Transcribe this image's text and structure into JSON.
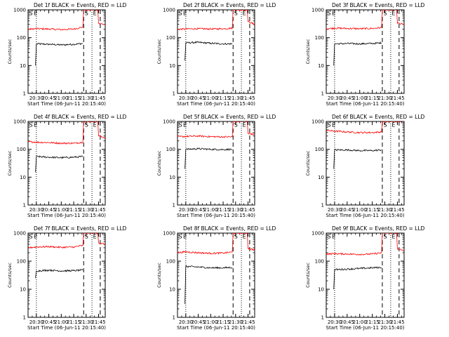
{
  "figure": {
    "y_unit_label": "Counts/sec",
    "x_axis_label": "Start Time (06-Jun-11 20:15:40)",
    "x_tick_labels": [
      "20:30",
      "20:45",
      "21:00",
      "21:15",
      "21:30",
      "21:45"
    ],
    "y_tick_labels": [
      "1",
      "10",
      "100",
      "1000"
    ],
    "marker_labels": [
      "S",
      "E",
      "S",
      "E"
    ],
    "colors": {
      "events": "#000000",
      "lld": "#ff0000",
      "axes": "#000000"
    }
  },
  "chart_data": [
    {
      "type": "line",
      "title": "Det 1f BLACK = Events, RED = LLD",
      "xlabel": "Start Time (06-Jun-11 20:15:40)",
      "ylabel": "Counts/sec",
      "yscale": "log",
      "ylim": [
        1,
        1000
      ],
      "xlim": [
        "20:20",
        "21:53"
      ],
      "x_ticks": [
        "20:30",
        "20:45",
        "21:00",
        "21:15",
        "21:30",
        "21:45"
      ],
      "vlines_dotted": [
        "20:30",
        "21:37"
      ],
      "vlines_dashed": [
        "21:27",
        "21:47"
      ],
      "event_start": "20:29",
      "event_end": "21:27",
      "lld_start": "20:20",
      "lld_end": "21:27",
      "series": [
        {
          "name": "Events",
          "color": "#000000",
          "points": [
            [
              "20:29",
              10
            ],
            [
              "20:30",
              60
            ],
            [
              "20:45",
              58
            ],
            [
              "21:00",
              55
            ],
            [
              "21:15",
              58
            ],
            [
              "21:26",
              62
            ]
          ]
        },
        {
          "name": "LLD",
          "color": "#ff0000",
          "points": [
            [
              "20:20",
              200
            ],
            [
              "20:30",
              210
            ],
            [
              "20:45",
              205
            ],
            [
              "21:00",
              195
            ],
            [
              "21:15",
              205
            ],
            [
              "21:26",
              240
            ],
            [
              "21:27",
              1000
            ],
            [
              "21:44",
              1000
            ],
            [
              "21:45",
              330
            ],
            [
              "21:53",
              290
            ]
          ]
        }
      ]
    },
    {
      "type": "line",
      "title": "Det 2f BLACK = Events, RED = LLD",
      "xlabel": "Start Time (06-Jun-11 20:15:40)",
      "ylabel": "Counts/sec",
      "yscale": "log",
      "ylim": [
        1,
        1000
      ],
      "xlim": [
        "20:20",
        "21:53"
      ],
      "x_ticks": [
        "20:30",
        "20:45",
        "21:00",
        "21:15",
        "21:30",
        "21:45"
      ],
      "vlines_dotted": [
        "20:30",
        "21:37"
      ],
      "vlines_dashed": [
        "21:27",
        "21:47"
      ],
      "event_start": "20:29",
      "event_end": "21:27",
      "lld_start": "20:20",
      "lld_end": "21:27",
      "series": [
        {
          "name": "Events",
          "color": "#000000",
          "points": [
            [
              "20:29",
              15
            ],
            [
              "20:30",
              65
            ],
            [
              "20:45",
              68
            ],
            [
              "21:00",
              63
            ],
            [
              "21:15",
              60
            ],
            [
              "21:26",
              60
            ]
          ]
        },
        {
          "name": "LLD",
          "color": "#ff0000",
          "points": [
            [
              "20:20",
              200
            ],
            [
              "20:30",
              205
            ],
            [
              "20:45",
              210
            ],
            [
              "21:00",
              205
            ],
            [
              "21:15",
              210
            ],
            [
              "21:26",
              220
            ],
            [
              "21:27",
              1000
            ],
            [
              "21:44",
              1000
            ],
            [
              "21:45",
              380
            ],
            [
              "21:53",
              300
            ]
          ]
        }
      ]
    },
    {
      "type": "line",
      "title": "Det 3f BLACK = Events, RED = LLD",
      "xlabel": "Start Time (06-Jun-11 20:15:40)",
      "ylabel": "Counts/sec",
      "yscale": "log",
      "ylim": [
        1,
        1000
      ],
      "xlim": [
        "20:20",
        "21:53"
      ],
      "x_ticks": [
        "20:30",
        "20:45",
        "21:00",
        "21:15",
        "21:30",
        "21:45"
      ],
      "vlines_dotted": [
        "20:30",
        "21:37"
      ],
      "vlines_dashed": [
        "21:27",
        "21:47"
      ],
      "event_start": "20:29",
      "event_end": "21:27",
      "lld_start": "20:20",
      "lld_end": "21:27",
      "series": [
        {
          "name": "Events",
          "color": "#000000",
          "points": [
            [
              "20:29",
              10
            ],
            [
              "20:30",
              60
            ],
            [
              "20:45",
              62
            ],
            [
              "21:00",
              60
            ],
            [
              "21:15",
              62
            ],
            [
              "21:26",
              65
            ]
          ]
        },
        {
          "name": "LLD",
          "color": "#ff0000",
          "points": [
            [
              "20:20",
              210
            ],
            [
              "20:30",
              220
            ],
            [
              "20:45",
              215
            ],
            [
              "21:00",
              210
            ],
            [
              "21:15",
              215
            ],
            [
              "21:26",
              230
            ],
            [
              "21:27",
              1000
            ],
            [
              "21:44",
              1000
            ],
            [
              "21:45",
              330
            ],
            [
              "21:53",
              300
            ]
          ]
        }
      ]
    },
    {
      "type": "line",
      "title": "Det 4f BLACK = Events, RED = LLD",
      "xlabel": "Start Time (06-Jun-11 20:15:40)",
      "ylabel": "Counts/sec",
      "yscale": "log",
      "ylim": [
        1,
        1000
      ],
      "xlim": [
        "20:20",
        "21:53"
      ],
      "x_ticks": [
        "20:30",
        "20:45",
        "21:00",
        "21:15",
        "21:30",
        "21:45"
      ],
      "vlines_dotted": [
        "20:30",
        "21:37"
      ],
      "vlines_dashed": [
        "21:27",
        "21:47"
      ],
      "event_start": "20:29",
      "event_end": "21:27",
      "lld_start": "20:20",
      "lld_end": "21:27",
      "series": [
        {
          "name": "Events",
          "color": "#000000",
          "points": [
            [
              "20:29",
              15
            ],
            [
              "20:30",
              55
            ],
            [
              "20:45",
              52
            ],
            [
              "21:00",
              50
            ],
            [
              "21:15",
              52
            ],
            [
              "21:26",
              55
            ]
          ]
        },
        {
          "name": "LLD",
          "color": "#ff0000",
          "points": [
            [
              "20:20",
              190
            ],
            [
              "20:30",
              180
            ],
            [
              "20:45",
              175
            ],
            [
              "21:00",
              165
            ],
            [
              "21:15",
              165
            ],
            [
              "21:26",
              180
            ],
            [
              "21:27",
              1000
            ],
            [
              "21:44",
              1000
            ],
            [
              "21:45",
              300
            ],
            [
              "21:53",
              260
            ]
          ]
        }
      ]
    },
    {
      "type": "line",
      "title": "Det 5f BLACK = Events, RED = LLD",
      "xlabel": "Start Time (06-Jun-11 20:15:40)",
      "ylabel": "Counts/sec",
      "yscale": "log",
      "ylim": [
        1,
        1000
      ],
      "xlim": [
        "20:20",
        "21:53"
      ],
      "x_ticks": [
        "20:30",
        "20:45",
        "21:00",
        "21:15",
        "21:30",
        "21:45"
      ],
      "vlines_dotted": [
        "20:30",
        "21:37"
      ],
      "vlines_dashed": [
        "21:27",
        "21:47"
      ],
      "event_start": "20:29",
      "event_end": "21:27",
      "lld_start": "20:20",
      "lld_end": "21:27",
      "series": [
        {
          "name": "Events",
          "color": "#000000",
          "points": [
            [
              "20:29",
              20
            ],
            [
              "20:30",
              100
            ],
            [
              "20:45",
              105
            ],
            [
              "21:00",
              100
            ],
            [
              "21:15",
              98
            ],
            [
              "21:26",
              100
            ]
          ]
        },
        {
          "name": "LLD",
          "color": "#ff0000",
          "points": [
            [
              "20:20",
              280
            ],
            [
              "20:30",
              290
            ],
            [
              "20:45",
              300
            ],
            [
              "21:00",
              285
            ],
            [
              "21:15",
              280
            ],
            [
              "21:26",
              280
            ],
            [
              "21:27",
              1000
            ],
            [
              "21:44",
              1000
            ],
            [
              "21:45",
              380
            ],
            [
              "21:53",
              340
            ]
          ]
        }
      ]
    },
    {
      "type": "line",
      "title": "Det 6f BLACK = Events, RED = LLD",
      "xlabel": "Start Time (06-Jun-11 20:15:40)",
      "ylabel": "Counts/sec",
      "yscale": "log",
      "ylim": [
        1,
        1000
      ],
      "xlim": [
        "20:20",
        "21:53"
      ],
      "x_ticks": [
        "20:30",
        "20:45",
        "21:00",
        "21:15",
        "21:30",
        "21:45"
      ],
      "vlines_dotted": [
        "20:30",
        "21:37"
      ],
      "vlines_dashed": [
        "21:27",
        "21:47"
      ],
      "event_start": "20:29",
      "event_end": "21:27",
      "lld_start": "20:20",
      "lld_end": "21:27",
      "series": [
        {
          "name": "Events",
          "color": "#000000",
          "points": [
            [
              "20:29",
              20
            ],
            [
              "20:30",
              95
            ],
            [
              "20:45",
              95
            ],
            [
              "21:00",
              90
            ],
            [
              "21:15",
              90
            ],
            [
              "21:26",
              95
            ]
          ]
        },
        {
          "name": "LLD",
          "color": "#ff0000",
          "points": [
            [
              "20:20",
              480
            ],
            [
              "20:30",
              450
            ],
            [
              "20:45",
              420
            ],
            [
              "21:00",
              400
            ],
            [
              "21:15",
              400
            ],
            [
              "21:26",
              420
            ],
            [
              "21:27",
              1000
            ],
            [
              "21:53",
              1000
            ]
          ]
        }
      ]
    },
    {
      "type": "line",
      "title": "Det 7f BLACK = Events, RED = LLD",
      "xlabel": "Start Time (06-Jun-11 20:15:40)",
      "ylabel": "Counts/sec",
      "yscale": "log",
      "ylim": [
        1,
        1000
      ],
      "xlim": [
        "20:20",
        "21:53"
      ],
      "x_ticks": [
        "20:30",
        "20:45",
        "21:00",
        "21:15",
        "21:30",
        "21:45"
      ],
      "vlines_dotted": [
        "20:30",
        "21:37"
      ],
      "vlines_dashed": [
        "21:27",
        "21:47"
      ],
      "event_start": "20:29",
      "event_end": "21:27",
      "lld_start": "20:20",
      "lld_end": "21:27",
      "series": [
        {
          "name": "Events",
          "color": "#000000",
          "points": [
            [
              "20:29",
              25
            ],
            [
              "20:30",
              45
            ],
            [
              "20:45",
              48
            ],
            [
              "21:00",
              45
            ],
            [
              "21:15",
              46
            ],
            [
              "21:26",
              48
            ]
          ]
        },
        {
          "name": "LLD",
          "color": "#ff0000",
          "points": [
            [
              "20:20",
              300
            ],
            [
              "20:30",
              320
            ],
            [
              "20:45",
              330
            ],
            [
              "21:00",
              310
            ],
            [
              "21:15",
              320
            ],
            [
              "21:26",
              360
            ],
            [
              "21:27",
              1000
            ],
            [
              "21:44",
              1000
            ],
            [
              "21:45",
              450
            ],
            [
              "21:53",
              400
            ]
          ]
        }
      ]
    },
    {
      "type": "line",
      "title": "Det 8f BLACK = Events, RED = LLD",
      "xlabel": "Start Time (06-Jun-11 20:15:40)",
      "ylabel": "Counts/sec",
      "yscale": "log",
      "ylim": [
        1,
        1000
      ],
      "xlim": [
        "20:20",
        "21:53"
      ],
      "x_ticks": [
        "20:30",
        "20:45",
        "21:00",
        "21:15",
        "21:30",
        "21:45"
      ],
      "vlines_dotted": [
        "20:30",
        "21:37"
      ],
      "vlines_dashed": [
        "21:27",
        "21:47"
      ],
      "event_start": "20:29",
      "event_end": "21:27",
      "lld_start": "20:20",
      "lld_end": "21:27",
      "series": [
        {
          "name": "Events",
          "color": "#000000",
          "points": [
            [
              "20:29",
              3
            ],
            [
              "20:30",
              65
            ],
            [
              "20:45",
              62
            ],
            [
              "21:00",
              58
            ],
            [
              "21:15",
              58
            ],
            [
              "21:26",
              60
            ]
          ]
        },
        {
          "name": "LLD",
          "color": "#ff0000",
          "points": [
            [
              "20:20",
              200
            ],
            [
              "20:30",
              215
            ],
            [
              "20:45",
              200
            ],
            [
              "21:00",
              190
            ],
            [
              "21:15",
              195
            ],
            [
              "21:26",
              210
            ],
            [
              "21:27",
              1000
            ],
            [
              "21:44",
              1000
            ],
            [
              "21:45",
              290
            ],
            [
              "21:53",
              250
            ]
          ]
        }
      ]
    },
    {
      "type": "line",
      "title": "Det 9f BLACK = Events, RED = LLD",
      "xlabel": "Start Time (06-Jun-11 20:15:40)",
      "ylabel": "Counts/sec",
      "yscale": "log",
      "ylim": [
        1,
        1000
      ],
      "xlim": [
        "20:20",
        "21:53"
      ],
      "x_ticks": [
        "20:30",
        "20:45",
        "21:00",
        "21:15",
        "21:30",
        "21:45"
      ],
      "vlines_dotted": [
        "20:30",
        "21:37"
      ],
      "vlines_dashed": [
        "21:27",
        "21:47"
      ],
      "event_start": "20:29",
      "event_end": "21:27",
      "lld_start": "20:20",
      "lld_end": "21:27",
      "series": [
        {
          "name": "Events",
          "color": "#000000",
          "points": [
            [
              "20:29",
              10
            ],
            [
              "20:30",
              50
            ],
            [
              "20:45",
              52
            ],
            [
              "21:00",
              55
            ],
            [
              "21:15",
              58
            ],
            [
              "21:26",
              60
            ]
          ]
        },
        {
          "name": "LLD",
          "color": "#ff0000",
          "points": [
            [
              "20:20",
              180
            ],
            [
              "20:30",
              185
            ],
            [
              "20:45",
              180
            ],
            [
              "21:00",
              175
            ],
            [
              "21:15",
              180
            ],
            [
              "21:26",
              200
            ],
            [
              "21:27",
              1000
            ],
            [
              "21:44",
              1000
            ],
            [
              "21:45",
              270
            ],
            [
              "21:53",
              240
            ]
          ]
        }
      ]
    }
  ]
}
